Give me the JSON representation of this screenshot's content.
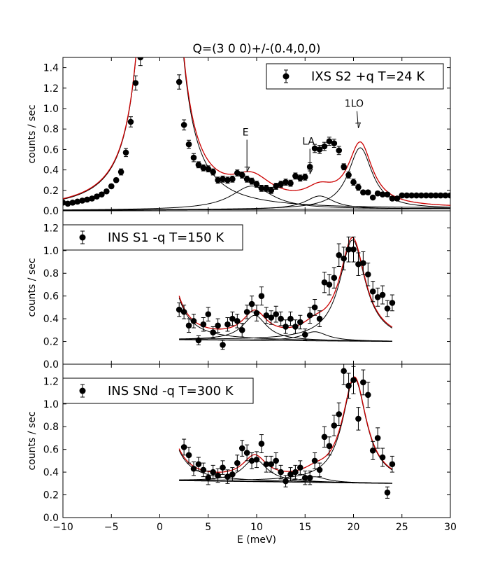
{
  "chart_data": {
    "type": "scatter",
    "title": "Q=(3 0 0)+/-(0.4,0,0)",
    "xlabel": "E (meV)",
    "xlim": [
      -10,
      30
    ],
    "x_ticks": [
      "−10",
      "−5",
      "0",
      "5",
      "10",
      "15",
      "20",
      "25",
      "30"
    ],
    "x_tick_values": [
      -10,
      -5,
      0,
      5,
      10,
      15,
      20,
      25,
      30
    ],
    "colors": {
      "data": "#000000",
      "fit_total": "#cc0000",
      "fit_component": "#000000"
    },
    "panels": [
      {
        "ylabel": "counts / sec",
        "ylim": [
          0,
          1.5
        ],
        "y_ticks": [
          "0.0",
          "0.2",
          "0.4",
          "0.6",
          "0.8",
          "1.0",
          "1.2",
          "1.4"
        ],
        "y_tick_values": [
          0,
          0.2,
          0.4,
          0.6,
          0.8,
          1.0,
          1.2,
          1.4
        ],
        "legend": "IXS S2 +q T=24 K",
        "legend_position": "top-right",
        "annotations": [
          {
            "text": "E",
            "x": 9.0,
            "y": 0.38
          },
          {
            "text": "LA",
            "x": 15.5,
            "y": 0.36
          },
          {
            "text": "1LO",
            "x": 20.5,
            "y": 0.81
          }
        ],
        "series": [
          {
            "name": "IXS S2 +q T=24 K",
            "x": [
              -10,
              -9.5,
              -9,
              -8.5,
              -8,
              -7.5,
              -7,
              -6.5,
              -6,
              -5.5,
              -5,
              -4.5,
              -4,
              -3.5,
              -3,
              -2.5,
              -2,
              2.0,
              2.5,
              3.0,
              3.5,
              4.0,
              4.5,
              5.0,
              5.5,
              6.0,
              6.5,
              7.0,
              7.5,
              8.0,
              8.5,
              9.0,
              9.5,
              10.0,
              10.5,
              11.0,
              11.5,
              12.0,
              12.5,
              13.0,
              13.5,
              14.0,
              14.5,
              15.0,
              15.5,
              16.0,
              16.5,
              17.0,
              17.5,
              18.0,
              18.5,
              19.0,
              19.5,
              20.0,
              20.5,
              21.0,
              21.5,
              22.0,
              22.5,
              23.0,
              23.5,
              24.0,
              24.5,
              25.0,
              25.5,
              26.0,
              26.5,
              27.0,
              27.5,
              28.0,
              28.5,
              29.0,
              29.5,
              30.0
            ],
            "y": [
              0.08,
              0.07,
              0.08,
              0.09,
              0.1,
              0.11,
              0.12,
              0.14,
              0.16,
              0.19,
              0.24,
              0.3,
              0.38,
              0.57,
              0.87,
              1.25,
              1.5,
              1.26,
              0.84,
              0.65,
              0.52,
              0.45,
              0.42,
              0.41,
              0.38,
              0.3,
              0.31,
              0.3,
              0.31,
              0.37,
              0.35,
              0.31,
              0.29,
              0.26,
              0.22,
              0.22,
              0.2,
              0.24,
              0.26,
              0.28,
              0.27,
              0.34,
              0.32,
              0.33,
              0.43,
              0.61,
              0.6,
              0.63,
              0.68,
              0.66,
              0.59,
              0.43,
              0.35,
              0.28,
              0.23,
              0.18,
              0.18,
              0.13,
              0.17,
              0.16,
              0.16,
              0.12,
              0.12,
              0.15,
              0.15,
              0.15,
              0.15,
              0.15,
              0.15,
              0.15,
              0.15,
              0.15,
              0.15,
              0.15
            ],
            "errors": [
              0.02,
              0.02,
              0.02,
              0.02,
              0.02,
              0.02,
              0.02,
              0.02,
              0.02,
              0.02,
              0.02,
              0.02,
              0.03,
              0.04,
              0.05,
              0.07,
              0.08,
              0.07,
              0.05,
              0.04,
              0.04,
              0.03,
              0.03,
              0.03,
              0.03,
              0.03,
              0.03,
              0.03,
              0.03,
              0.03,
              0.03,
              0.03,
              0.03,
              0.03,
              0.03,
              0.03,
              0.03,
              0.03,
              0.03,
              0.03,
              0.03,
              0.03,
              0.03,
              0.03,
              0.04,
              0.04,
              0.04,
              0.04,
              0.04,
              0.04,
              0.04,
              0.03,
              0.03,
              0.03,
              0.03,
              0.02,
              0.02,
              0.02,
              0.02,
              0.02,
              0.02,
              0.02,
              0.02,
              0.02,
              0.02,
              0.02,
              0.02,
              0.02,
              0.02,
              0.02,
              0.02,
              0.02,
              0.02,
              0.02
            ]
          }
        ],
        "fit_components": [
          {
            "name": "elastic",
            "type": "lorentz",
            "center": 0,
            "gamma": 1.1,
            "amp": 9.0,
            "range": [
              -10,
              30
            ]
          },
          {
            "name": "E",
            "type": "lorentz",
            "center": 9.5,
            "gamma": 2.6,
            "amp": 0.23,
            "range": [
              -10,
              30
            ]
          },
          {
            "name": "LA",
            "type": "lorentz",
            "center": 16.5,
            "gamma": 1.8,
            "amp": 0.13,
            "range": [
              -10,
              30
            ]
          },
          {
            "name": "1LO",
            "type": "lorentz",
            "center": 20.7,
            "gamma": 1.5,
            "amp": 0.6,
            "range": [
              -10,
              30
            ]
          },
          {
            "name": "background",
            "type": "linear",
            "y0": 0.005,
            "y1": 0.02,
            "range": [
              -10,
              30
            ]
          }
        ]
      },
      {
        "ylabel": "counts / sec",
        "ylim": [
          0,
          1.35
        ],
        "y_ticks": [
          "0.0",
          "0.2",
          "0.4",
          "0.6",
          "0.8",
          "1.0",
          "1.2"
        ],
        "y_tick_values": [
          0,
          0.2,
          0.4,
          0.6,
          0.8,
          1.0,
          1.2
        ],
        "legend": "INS S1 -q T=150 K",
        "legend_position": "top-left",
        "annotations": [],
        "series": [
          {
            "name": "INS S1 -q T=150 K",
            "x": [
              2.0,
              2.5,
              3.0,
              3.5,
              4.0,
              4.5,
              5.0,
              5.5,
              6.0,
              6.5,
              7.0,
              7.5,
              8.0,
              8.5,
              9.0,
              9.5,
              10.0,
              10.5,
              11.0,
              11.5,
              12.0,
              12.5,
              13.0,
              13.5,
              14.0,
              14.5,
              15.0,
              15.5,
              16.0,
              16.5,
              17.0,
              17.5,
              18.0,
              18.5,
              19.0,
              19.5,
              20.0,
              20.5,
              21.0,
              21.5,
              22.0,
              22.5,
              23.0,
              23.5,
              24.0
            ],
            "y": [
              0.48,
              0.46,
              0.34,
              0.38,
              0.21,
              0.35,
              0.44,
              0.28,
              0.34,
              0.17,
              0.35,
              0.4,
              0.38,
              0.3,
              0.46,
              0.53,
              0.45,
              0.6,
              0.43,
              0.41,
              0.44,
              0.4,
              0.33,
              0.4,
              0.33,
              0.37,
              0.26,
              0.43,
              0.5,
              0.4,
              0.72,
              0.7,
              0.76,
              0.96,
              0.93,
              1.01,
              1.01,
              0.88,
              0.89,
              0.79,
              0.64,
              0.59,
              0.61,
              0.49,
              0.54
            ],
            "errors": [
              0.06,
              0.06,
              0.06,
              0.06,
              0.04,
              0.06,
              0.06,
              0.05,
              0.06,
              0.04,
              0.06,
              0.06,
              0.06,
              0.06,
              0.06,
              0.07,
              0.07,
              0.08,
              0.07,
              0.06,
              0.07,
              0.06,
              0.06,
              0.06,
              0.06,
              0.06,
              0.05,
              0.07,
              0.07,
              0.07,
              0.09,
              0.09,
              0.09,
              0.1,
              0.1,
              0.11,
              0.11,
              0.1,
              0.1,
              0.1,
              0.09,
              0.08,
              0.08,
              0.07,
              0.07
            ]
          }
        ],
        "fit_components": [
          {
            "name": "elastic",
            "type": "lorentz",
            "center": 0,
            "gamma": 1.2,
            "amp": 1.4,
            "range": [
              2,
              24
            ]
          },
          {
            "name": "E",
            "type": "lorentz",
            "center": 9.8,
            "gamma": 1.5,
            "amp": 0.22,
            "range": [
              2,
              24
            ]
          },
          {
            "name": "LA",
            "type": "lorentz",
            "center": 16.0,
            "gamma": 1.6,
            "amp": 0.08,
            "range": [
              2,
              24
            ]
          },
          {
            "name": "1LO",
            "type": "lorentz",
            "center": 19.9,
            "gamma": 1.6,
            "amp": 0.89,
            "range": [
              2,
              24
            ]
          },
          {
            "name": "background",
            "type": "linear",
            "y0": 0.215,
            "y1": 0.2,
            "range": [
              2,
              24
            ]
          }
        ]
      },
      {
        "ylabel": "counts / sec",
        "ylim": [
          0,
          1.35
        ],
        "y_ticks": [
          "0.0",
          "0.2",
          "0.4",
          "0.6",
          "0.8",
          "1.0",
          "1.2"
        ],
        "y_tick_values": [
          0,
          0.2,
          0.4,
          0.6,
          0.8,
          1.0,
          1.2
        ],
        "legend": "INS SNd -q T=300 K",
        "legend_position": "top-left",
        "annotations": [],
        "series": [
          {
            "name": "INS SNd -q T=300 K",
            "x": [
              2.5,
              3.0,
              3.5,
              4.0,
              4.5,
              5.0,
              5.5,
              6.0,
              6.5,
              7.0,
              7.5,
              8.0,
              8.5,
              9.0,
              9.5,
              10.0,
              10.5,
              11.0,
              11.5,
              12.0,
              12.5,
              13.0,
              13.5,
              14.0,
              14.5,
              15.0,
              15.5,
              16.0,
              16.5,
              17.0,
              17.5,
              18.0,
              18.5,
              19.0,
              19.5,
              20.0,
              20.5,
              21.0,
              21.5,
              22.0,
              22.5,
              23.0,
              23.5,
              24.0
            ],
            "y": [
              0.62,
              0.55,
              0.43,
              0.47,
              0.42,
              0.35,
              0.4,
              0.37,
              0.44,
              0.36,
              0.38,
              0.48,
              0.61,
              0.57,
              0.5,
              0.51,
              0.65,
              0.47,
              0.47,
              0.5,
              0.4,
              0.32,
              0.38,
              0.4,
              0.44,
              0.35,
              0.35,
              0.5,
              0.42,
              0.71,
              0.63,
              0.81,
              0.91,
              1.29,
              1.16,
              1.21,
              0.87,
              1.19,
              1.08,
              0.59,
              0.7,
              0.53,
              0.22,
              0.47
            ],
            "errors": [
              0.07,
              0.07,
              0.06,
              0.06,
              0.06,
              0.06,
              0.06,
              0.06,
              0.06,
              0.06,
              0.06,
              0.07,
              0.07,
              0.07,
              0.07,
              0.07,
              0.08,
              0.07,
              0.07,
              0.07,
              0.06,
              0.05,
              0.06,
              0.06,
              0.06,
              0.06,
              0.06,
              0.07,
              0.06,
              0.09,
              0.08,
              0.09,
              0.1,
              0.12,
              0.11,
              0.12,
              0.1,
              0.11,
              0.11,
              0.08,
              0.09,
              0.08,
              0.05,
              0.07
            ]
          }
        ],
        "fit_components": [
          {
            "name": "elastic",
            "type": "lorentz",
            "center": 0,
            "gamma": 1.3,
            "amp": 0.9,
            "range": [
              2,
              24
            ]
          },
          {
            "name": "E",
            "type": "lorentz",
            "center": 9.8,
            "gamma": 1.5,
            "amp": 0.2,
            "range": [
              2,
              24
            ]
          },
          {
            "name": "LA",
            "type": "lorentz",
            "center": 16.0,
            "gamma": 1.5,
            "amp": 0.05,
            "range": [
              2,
              24
            ]
          },
          {
            "name": "1LO",
            "type": "lorentz",
            "center": 20.1,
            "gamma": 1.5,
            "amp": 0.92,
            "range": [
              2,
              24
            ]
          },
          {
            "name": "background",
            "type": "linear",
            "y0": 0.325,
            "y1": 0.3,
            "range": [
              2,
              24
            ]
          }
        ]
      }
    ]
  }
}
